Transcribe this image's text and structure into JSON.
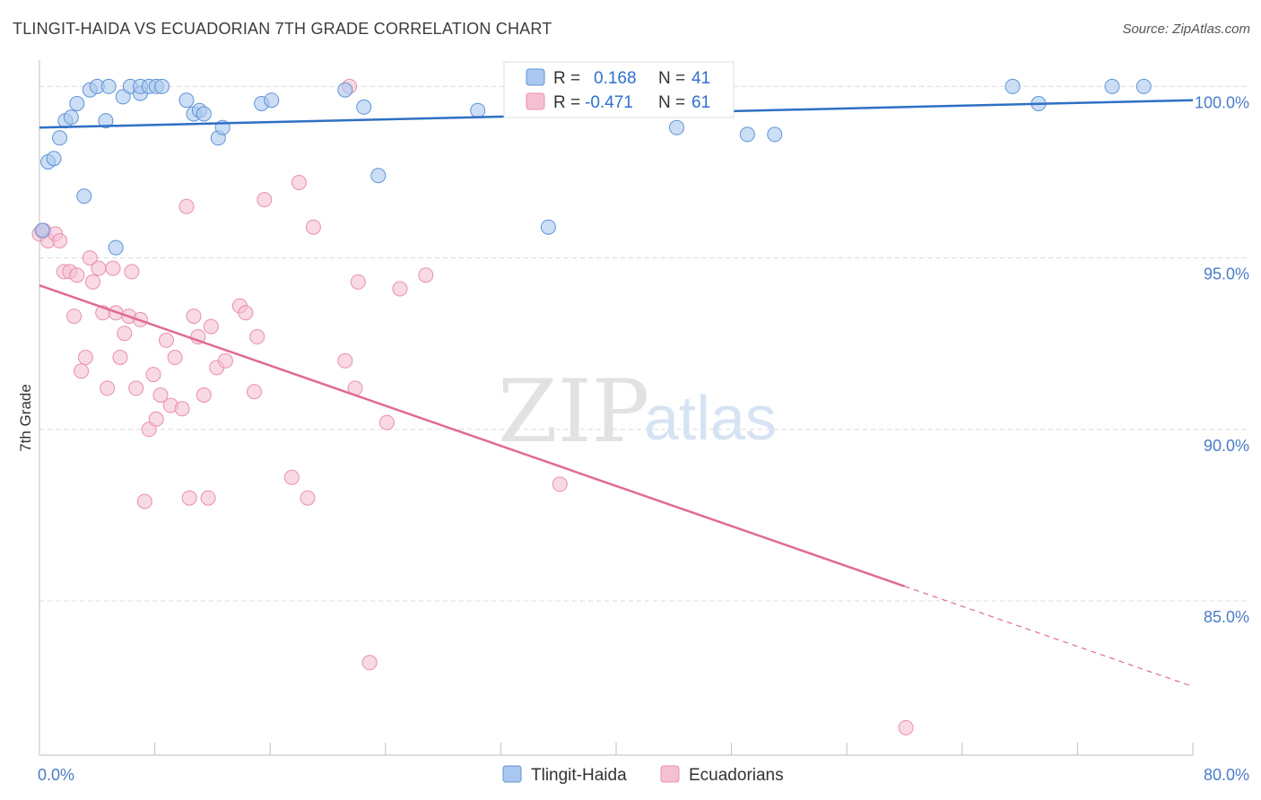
{
  "header": {
    "title": "TLINGIT-HAIDA VS ECUADORIAN 7TH GRADE CORRELATION CHART",
    "source": "Source: ZipAtlas.com"
  },
  "watermark": {
    "zip": "ZIP",
    "atlas": "atlas"
  },
  "stats": {
    "r_label": "R =",
    "n_label": "N =",
    "tlingit": {
      "r": "0.168",
      "n": "41"
    },
    "ecuadorian": {
      "r": "-0.471",
      "n": "61"
    }
  },
  "colors": {
    "blue_fill": "#aac8ef",
    "blue_stroke": "#5f93d6",
    "blue_line": "#2f6fc4",
    "pink_fill": "#f5c0d2",
    "pink_stroke": "#e890ae",
    "pink_line": "#e06a95",
    "grid": "#dcdcdc",
    "tick_text": "#4a7cc9"
  },
  "chart_data": {
    "type": "scatter",
    "xlabel": "",
    "ylabel": "7th Grade",
    "xlim": [
      0,
      80
    ],
    "ylim": [
      80.5,
      100.9
    ],
    "x_tick_labels": [
      {
        "value": 0,
        "label": "0.0%"
      },
      {
        "value": 80,
        "label": "80.0%"
      }
    ],
    "y_tick_labels": [
      {
        "value": 100,
        "label": "100.0%"
      },
      {
        "value": 95,
        "label": "95.0%"
      },
      {
        "value": 90,
        "label": "90.0%"
      },
      {
        "value": 85,
        "label": "85.0%"
      }
    ],
    "x_minor_ticks": [
      0,
      8,
      16,
      24,
      32,
      40,
      48,
      56,
      64,
      72,
      80
    ],
    "grid": true,
    "legend_position": "bottom-center",
    "series": [
      {
        "name": "Tlingit-Haida",
        "color": "#aac8ef",
        "trend": {
          "x": [
            0,
            80
          ],
          "y": [
            98.8,
            99.6
          ]
        },
        "points": [
          [
            0.2,
            95.8
          ],
          [
            0.6,
            97.8
          ],
          [
            1.0,
            97.9
          ],
          [
            1.4,
            98.5
          ],
          [
            1.8,
            99.0
          ],
          [
            2.2,
            99.1
          ],
          [
            2.6,
            99.5
          ],
          [
            3.1,
            96.8
          ],
          [
            3.5,
            99.9
          ],
          [
            4.0,
            100.0
          ],
          [
            4.6,
            99.0
          ],
          [
            4.8,
            100.0
          ],
          [
            5.3,
            95.3
          ],
          [
            5.8,
            99.7
          ],
          [
            6.3,
            100.0
          ],
          [
            7.0,
            99.8
          ],
          [
            7.0,
            100.0
          ],
          [
            7.6,
            100.0
          ],
          [
            8.1,
            100.0
          ],
          [
            8.5,
            100.0
          ],
          [
            10.2,
            99.6
          ],
          [
            10.7,
            99.2
          ],
          [
            11.1,
            99.3
          ],
          [
            11.4,
            99.2
          ],
          [
            12.4,
            98.5
          ],
          [
            12.7,
            98.8
          ],
          [
            15.4,
            99.5
          ],
          [
            16.1,
            99.6
          ],
          [
            21.2,
            99.9
          ],
          [
            22.5,
            99.4
          ],
          [
            23.5,
            97.4
          ],
          [
            30.4,
            99.3
          ],
          [
            35.3,
            95.9
          ],
          [
            35.9,
            100.0
          ],
          [
            44.2,
            98.8
          ],
          [
            49.1,
            98.6
          ],
          [
            51.0,
            98.6
          ],
          [
            67.5,
            100.0
          ],
          [
            69.3,
            99.5
          ],
          [
            74.4,
            100.0
          ],
          [
            76.6,
            100.0
          ]
        ]
      },
      {
        "name": "Ecuadorians",
        "color": "#f5c0d2",
        "trend": {
          "x": [
            0,
            80
          ],
          "y": [
            94.2,
            82.5
          ]
        },
        "points": [
          [
            0.0,
            95.7
          ],
          [
            0.3,
            95.8
          ],
          [
            0.6,
            95.5
          ],
          [
            1.1,
            95.7
          ],
          [
            1.4,
            95.5
          ],
          [
            1.7,
            94.6
          ],
          [
            2.1,
            94.6
          ],
          [
            2.4,
            93.3
          ],
          [
            2.6,
            94.5
          ],
          [
            2.9,
            91.7
          ],
          [
            3.2,
            92.1
          ],
          [
            3.5,
            95.0
          ],
          [
            3.7,
            94.3
          ],
          [
            4.1,
            94.7
          ],
          [
            4.4,
            93.4
          ],
          [
            4.7,
            91.2
          ],
          [
            5.1,
            94.7
          ],
          [
            5.3,
            93.4
          ],
          [
            5.6,
            92.1
          ],
          [
            5.9,
            92.8
          ],
          [
            6.2,
            93.3
          ],
          [
            6.4,
            94.6
          ],
          [
            6.7,
            91.2
          ],
          [
            7.0,
            93.2
          ],
          [
            7.3,
            87.9
          ],
          [
            7.6,
            90.0
          ],
          [
            7.9,
            91.6
          ],
          [
            8.1,
            90.3
          ],
          [
            8.4,
            91.0
          ],
          [
            8.8,
            92.6
          ],
          [
            9.1,
            90.7
          ],
          [
            9.4,
            92.1
          ],
          [
            9.9,
            90.6
          ],
          [
            10.2,
            96.5
          ],
          [
            10.4,
            88.0
          ],
          [
            10.7,
            93.3
          ],
          [
            11.0,
            92.7
          ],
          [
            11.4,
            91.0
          ],
          [
            11.7,
            88.0
          ],
          [
            11.9,
            93.0
          ],
          [
            12.3,
            91.8
          ],
          [
            12.9,
            92.0
          ],
          [
            13.9,
            93.6
          ],
          [
            14.3,
            93.4
          ],
          [
            14.9,
            91.1
          ],
          [
            15.1,
            92.7
          ],
          [
            15.6,
            96.7
          ],
          [
            17.5,
            88.6
          ],
          [
            18.0,
            97.2
          ],
          [
            18.6,
            88.0
          ],
          [
            19.0,
            95.9
          ],
          [
            21.2,
            92.0
          ],
          [
            21.5,
            100.0
          ],
          [
            21.9,
            91.2
          ],
          [
            22.1,
            94.3
          ],
          [
            22.9,
            83.2
          ],
          [
            24.1,
            90.2
          ],
          [
            25.0,
            94.1
          ],
          [
            26.8,
            94.5
          ],
          [
            36.1,
            88.4
          ],
          [
            60.1,
            81.3
          ]
        ]
      }
    ]
  }
}
